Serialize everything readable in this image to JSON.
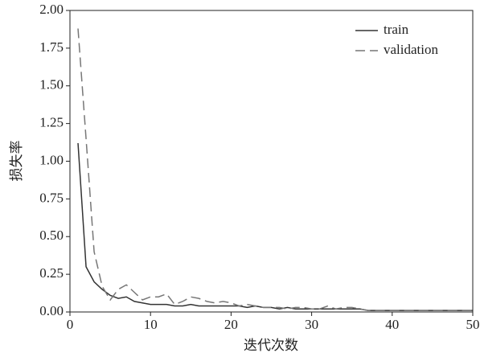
{
  "chart_data": {
    "type": "line",
    "x_label": "迭代次数",
    "y_label": "损失率",
    "x": [
      1,
      2,
      3,
      4,
      5,
      6,
      7,
      8,
      9,
      10,
      11,
      12,
      13,
      14,
      15,
      16,
      17,
      18,
      19,
      20,
      21,
      22,
      23,
      24,
      25,
      26,
      27,
      28,
      29,
      30,
      31,
      32,
      33,
      34,
      35,
      36,
      37,
      38,
      39,
      40,
      41,
      42,
      43,
      44,
      45,
      46,
      47,
      48,
      49,
      50
    ],
    "series": [
      {
        "name": "train",
        "color": "#333333",
        "linestyle": "solid",
        "values": [
          1.12,
          0.3,
          0.2,
          0.15,
          0.11,
          0.09,
          0.1,
          0.07,
          0.06,
          0.05,
          0.05,
          0.05,
          0.04,
          0.04,
          0.05,
          0.04,
          0.04,
          0.04,
          0.04,
          0.04,
          0.04,
          0.03,
          0.04,
          0.03,
          0.03,
          0.02,
          0.03,
          0.02,
          0.02,
          0.02,
          0.02,
          0.02,
          0.02,
          0.02,
          0.02,
          0.02,
          0.01,
          0.01,
          0.01,
          0.01,
          0.01,
          0.01,
          0.01,
          0.01,
          0.01,
          0.01,
          0.01,
          0.01,
          0.01,
          0.01
        ]
      },
      {
        "name": "validation",
        "color": "#777777",
        "linestyle": "dashed",
        "values": [
          1.88,
          1.15,
          0.4,
          0.17,
          0.08,
          0.15,
          0.18,
          0.13,
          0.08,
          0.1,
          0.1,
          0.12,
          0.05,
          0.07,
          0.1,
          0.09,
          0.07,
          0.06,
          0.07,
          0.06,
          0.04,
          0.05,
          0.04,
          0.03,
          0.03,
          0.03,
          0.02,
          0.03,
          0.03,
          0.02,
          0.02,
          0.04,
          0.02,
          0.03,
          0.03,
          0.02,
          0.01,
          0.01,
          0.01,
          0.01,
          0.01,
          0.01,
          0.01,
          0.01,
          0.01,
          0.01,
          0.01,
          0.01,
          0.01,
          0.01
        ]
      }
    ],
    "xlim": [
      0,
      50
    ],
    "xticks": [
      0,
      10,
      20,
      30,
      40,
      50
    ],
    "ylim": [
      0,
      2
    ],
    "yticks": [
      {
        "value": 0,
        "label": "0.00"
      },
      {
        "value": 0.25,
        "label": "0.25"
      },
      {
        "value": 0.5,
        "label": "0.50"
      },
      {
        "value": 0.75,
        "label": "0.75"
      },
      {
        "value": 1,
        "label": "1.00"
      },
      {
        "value": 1.25,
        "label": "1.25"
      },
      {
        "value": 1.5,
        "label": "1.50"
      },
      {
        "value": 1.75,
        "label": "1.75"
      },
      {
        "value": 2,
        "label": "2.00"
      }
    ],
    "legend": "upper right",
    "grid": false
  }
}
